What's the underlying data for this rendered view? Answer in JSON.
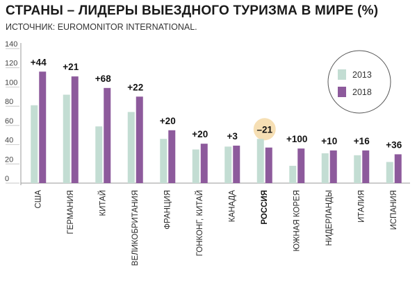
{
  "chart_data": {
    "type": "bar",
    "title": "СТРАНЫ – ЛИДЕРЫ ВЫЕЗДНОГО ТУРИЗМА В МИРЕ (%)",
    "source": "ИСТОЧНИК: EUROMONITOR INTERNATIONAL.",
    "categories": [
      "США",
      "ГЕРМАНИЯ",
      "КИТАЙ",
      "ВЕЛИКОБРИТАНИЯ",
      "ФРАНЦИЯ",
      "ГОНКОНГ, КИТАЙ",
      "КАНАДА",
      "РОССИЯ",
      "ЮЖНАЯ КОРЕЯ",
      "НИДЕРЛАНДЫ",
      "ИТАЛИЯ",
      "ИСПАНИЯ"
    ],
    "highlight_category": "РОССИЯ",
    "series": [
      {
        "name": "2013",
        "values": [
          81,
          92,
          59,
          74,
          46,
          35,
          38,
          46,
          18,
          31,
          29,
          22
        ]
      },
      {
        "name": "2018",
        "values": [
          116,
          111,
          99,
          90,
          55,
          41,
          39,
          37,
          36,
          34,
          34,
          30
        ]
      }
    ],
    "change_labels": [
      "+44",
      "+21",
      "+68",
      "+22",
      "+20",
      "+20",
      "+3",
      "–21",
      "+100",
      "+10",
      "+16",
      "+36"
    ],
    "yticks": [
      0,
      20,
      40,
      60,
      80,
      100,
      120,
      140
    ],
    "ylim": [
      0,
      140
    ],
    "grid": false,
    "legend_position": "top-right",
    "colors": {
      "2013": "#c3ddd3",
      "2018": "#8d5a9c",
      "highlight_circle": "#f6dfb4",
      "axis": "#9a9a9a",
      "legend_border": "#555555"
    }
  }
}
